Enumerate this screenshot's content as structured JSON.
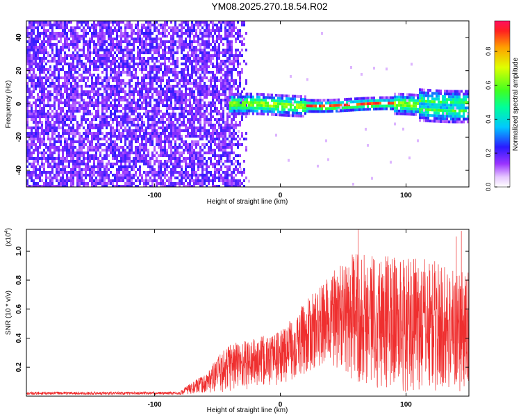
{
  "title": "YM08.2025.270.18.54.R02",
  "colors": {
    "snr_line": "#ef2f2f",
    "axis": "#000000"
  },
  "chart_data": [
    {
      "type": "heatmap",
      "name": "spectrogram",
      "xlabel": "Height of straight line (km)",
      "ylabel": "Frequency (Hz)",
      "xlim": [
        -202,
        150
      ],
      "ylim": [
        -50,
        50
      ],
      "x_ticks": [
        -100,
        0,
        100
      ],
      "y_ticks": [
        -40,
        -20,
        0,
        20,
        40
      ],
      "colorbar": {
        "label": "Normalized spectral amplitude",
        "range": [
          0,
          1
        ],
        "ticks": [
          "0.0",
          "0.2",
          "0.4",
          "0.6",
          "0.8"
        ]
      },
      "regions": [
        {
          "x_range": [
            -202,
            -22
          ],
          "description_level": 0.2
        },
        {
          "x_range": [
            -35,
            150
          ],
          "center_freq": 0,
          "level": 0.9
        }
      ]
    },
    {
      "type": "line",
      "name": "snr",
      "xlabel": "Height of straight line (km)",
      "ylabel": "SNR (10 * v/v)",
      "y_multiplier": "(x10",
      "y_multiplier_exp": "4",
      "y_multiplier_close": ")",
      "xlim": [
        -202,
        150
      ],
      "ylim": [
        0,
        1.15
      ],
      "x_ticks": [
        -100,
        0,
        100
      ],
      "y_ticks": [
        "0.2",
        "0.4",
        "0.6",
        "0.8",
        "1.0"
      ],
      "envelope": [
        {
          "x": -202,
          "low": 0.01,
          "high": 0.03
        },
        {
          "x": -80,
          "low": 0.01,
          "high": 0.03
        },
        {
          "x": -75,
          "low": 0.01,
          "high": 0.07
        },
        {
          "x": -60,
          "low": 0.02,
          "high": 0.15
        },
        {
          "x": -40,
          "low": 0.03,
          "high": 0.38
        },
        {
          "x": -20,
          "low": 0.05,
          "high": 0.4
        },
        {
          "x": 0,
          "low": 0.08,
          "high": 0.45
        },
        {
          "x": 20,
          "low": 0.15,
          "high": 0.65
        },
        {
          "x": 40,
          "low": 0.2,
          "high": 0.85
        },
        {
          "x": 60,
          "low": 0.1,
          "high": 1.0
        },
        {
          "x": 80,
          "low": 0.05,
          "high": 1.0
        },
        {
          "x": 100,
          "low": 0.02,
          "high": 0.95
        },
        {
          "x": 120,
          "low": 0.02,
          "high": 0.95
        },
        {
          "x": 150,
          "low": 0.02,
          "high": 0.85
        }
      ],
      "peaks": [
        {
          "x": 62,
          "y": 1.15
        },
        {
          "x": 144,
          "y": 1.14
        },
        {
          "x": 140,
          "y": 1.1
        }
      ]
    }
  ]
}
